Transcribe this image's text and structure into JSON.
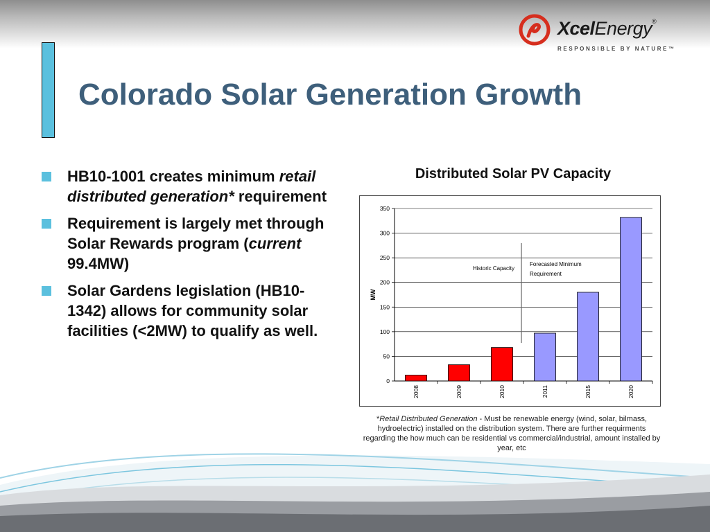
{
  "brand": {
    "name_bold": "Xcel",
    "name_rest": "Energy",
    "registered": "®",
    "tagline": "RESPONSIBLE BY NATURE™",
    "colors": {
      "logo_red": "#d62e1e",
      "title_blue": "#3e5f7b",
      "accent_cyan": "#5bc0de"
    }
  },
  "slide": {
    "title": "Colorado Solar Generation Growth"
  },
  "bullets": [
    {
      "parts": [
        {
          "text": "HB10-1001 creates minimum ",
          "italic": false
        },
        {
          "text": "retail distributed generation*",
          "italic": true
        },
        {
          "text": " requirement",
          "italic": false
        }
      ]
    },
    {
      "parts": [
        {
          "text": "Requirement is largely met through Solar Rewards program (",
          "italic": false
        },
        {
          "text": "current",
          "italic": true
        },
        {
          "text": " 99.4MW)",
          "italic": false
        }
      ]
    },
    {
      "parts": [
        {
          "text": "Solar Gardens legislation (HB10-1342) allows for community solar facilities (<2MW) to qualify as well.",
          "italic": false
        }
      ]
    }
  ],
  "chart_data": {
    "type": "bar",
    "title": "Distributed Solar PV Capacity",
    "ylabel": "MW",
    "xlabel": "",
    "categories": [
      "2008",
      "2009",
      "2010",
      "2011",
      "2015",
      "2020"
    ],
    "values": [
      12,
      33,
      68,
      97,
      180,
      332
    ],
    "bar_groups": [
      "historic",
      "historic",
      "historic",
      "forecast",
      "forecast",
      "forecast"
    ],
    "colors": {
      "historic": "#ff0000",
      "forecast": "#9999ff"
    },
    "ylim": [
      0,
      350
    ],
    "yticks": [
      0,
      50,
      100,
      150,
      200,
      250,
      300,
      350
    ],
    "grid": true,
    "annotations": {
      "historic": "Historic Capacity",
      "forecast_line1": "Forecasted Minimum",
      "forecast_line2": "Requirement"
    }
  },
  "footnote": {
    "star": "*",
    "term": "Retail Distributed Generation",
    "text": " - Must be renewable energy (wind, solar, bilmass, hydroelectric) installed on the distribution system. There are further requirments regarding the how much can be residential vs commercial/industrial, amount installed by year, etc"
  }
}
